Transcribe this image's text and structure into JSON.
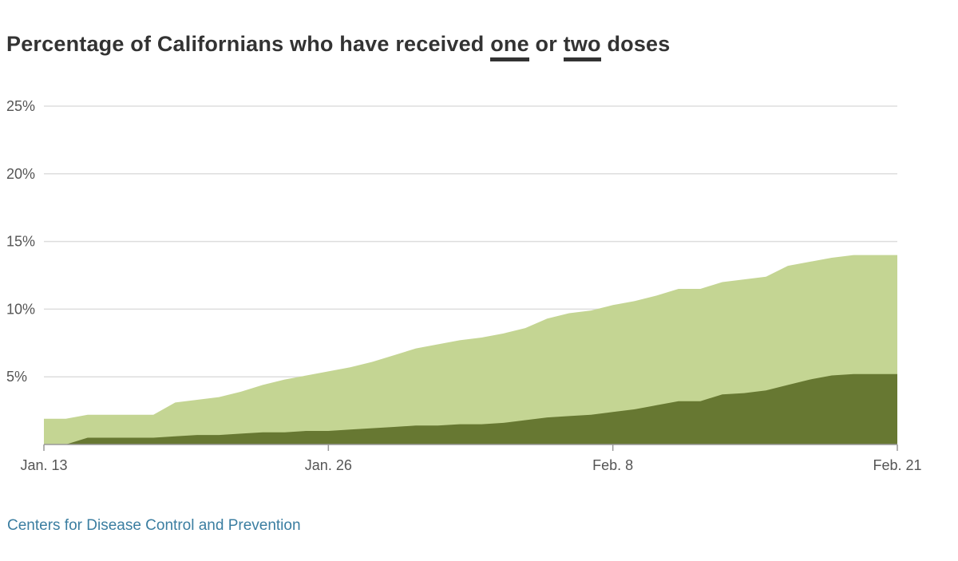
{
  "title": {
    "prefix": "Percentage of Californians who have received",
    "one": "one",
    "or": "or",
    "two": "two",
    "suffix": "doses"
  },
  "source": "Centers for Disease Control and Prevention",
  "colors": {
    "one_dose": "#c4d593",
    "two_doses": "#677832",
    "grid": "#dddddd",
    "axis": "#999999"
  },
  "chart_data": {
    "type": "area",
    "stacked": false,
    "grid": true,
    "legend": "inline in title",
    "x": [
      "Jan. 13",
      "Jan. 14",
      "Jan. 15",
      "Jan. 16",
      "Jan. 17",
      "Jan. 18",
      "Jan. 19",
      "Jan. 20",
      "Jan. 21",
      "Jan. 22",
      "Jan. 23",
      "Jan. 24",
      "Jan. 25",
      "Jan. 26",
      "Jan. 27",
      "Jan. 28",
      "Jan. 29",
      "Jan. 30",
      "Jan. 31",
      "Feb. 1",
      "Feb. 2",
      "Feb. 3",
      "Feb. 4",
      "Feb. 5",
      "Feb. 6",
      "Feb. 7",
      "Feb. 8",
      "Feb. 9",
      "Feb. 10",
      "Feb. 11",
      "Feb. 12",
      "Feb. 13",
      "Feb. 14",
      "Feb. 15",
      "Feb. 16",
      "Feb. 17",
      "Feb. 18",
      "Feb. 19",
      "Feb. 20",
      "Feb. 21"
    ],
    "series": [
      {
        "name": "one",
        "values": [
          1.9,
          1.9,
          2.2,
          2.2,
          2.2,
          2.2,
          3.1,
          3.3,
          3.5,
          3.9,
          4.4,
          4.8,
          5.1,
          5.4,
          5.7,
          6.1,
          6.6,
          7.1,
          7.4,
          7.7,
          7.9,
          8.2,
          8.6,
          9.3,
          9.7,
          9.9,
          10.3,
          10.6,
          11.0,
          11.5,
          11.5,
          12.0,
          12.2,
          12.4,
          13.2,
          13.5,
          13.8,
          14.0,
          14.0,
          14.0
        ]
      },
      {
        "name": "two",
        "values": [
          0,
          0,
          0.5,
          0.5,
          0.5,
          0.5,
          0.6,
          0.7,
          0.7,
          0.8,
          0.9,
          0.9,
          1.0,
          1.0,
          1.1,
          1.2,
          1.3,
          1.4,
          1.4,
          1.5,
          1.5,
          1.6,
          1.8,
          2.0,
          2.1,
          2.2,
          2.4,
          2.6,
          2.9,
          3.2,
          3.2,
          3.7,
          3.8,
          4.0,
          4.4,
          4.8,
          5.1,
          5.2,
          5.2,
          5.2
        ]
      }
    ],
    "xticks": [
      "Jan. 13",
      "Jan. 26",
      "Feb. 8",
      "Feb. 21"
    ],
    "yticks": [
      5,
      10,
      15,
      20,
      25
    ],
    "ytick_labels": [
      "5%",
      "10%",
      "15%",
      "20%",
      "25%"
    ],
    "ylim": [
      0,
      25
    ]
  }
}
